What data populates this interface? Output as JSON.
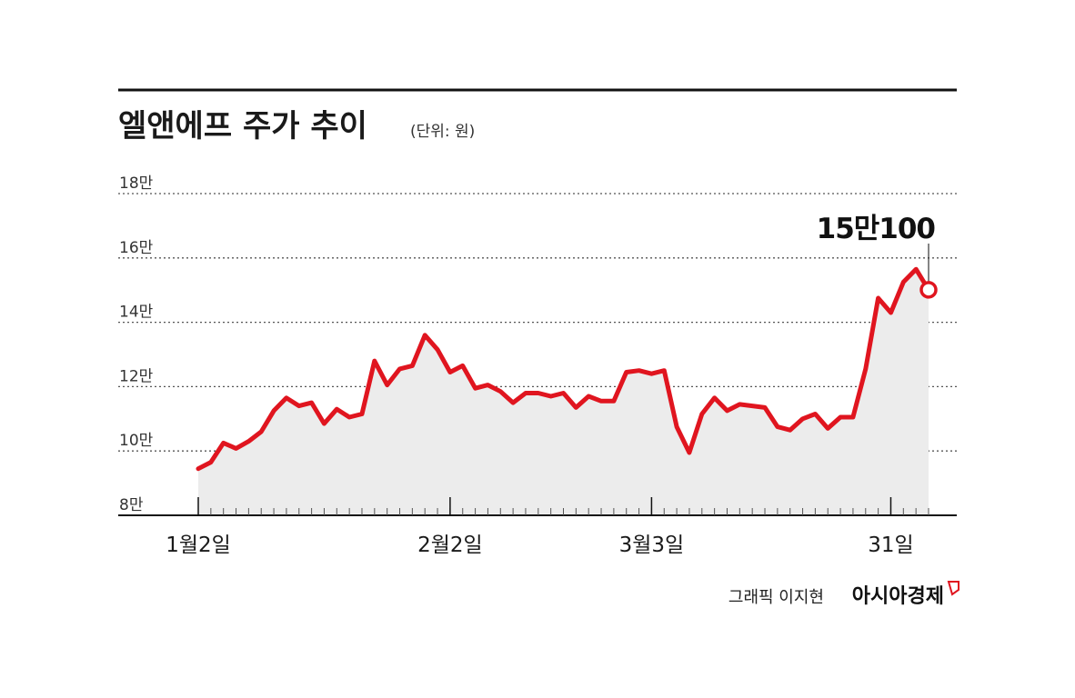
{
  "chart_data": {
    "type": "area",
    "title": "엘앤에프 주가 추이",
    "unit": "(단위: 원)",
    "ylim": [
      80000,
      180000
    ],
    "y_ticks": [
      {
        "value": 80000,
        "label": "8만"
      },
      {
        "value": 100000,
        "label": "10만"
      },
      {
        "value": 120000,
        "label": "12만"
      },
      {
        "value": 140000,
        "label": "14만"
      },
      {
        "value": 160000,
        "label": "16만"
      },
      {
        "value": 180000,
        "label": "18만"
      }
    ],
    "x_ticks": [
      {
        "index": 0,
        "label": "1월2일"
      },
      {
        "index": 20,
        "label": "2월2일"
      },
      {
        "index": 36,
        "label": "3월3일"
      },
      {
        "index": 55,
        "label": "31일"
      }
    ],
    "grid": true,
    "colors": {
      "line": "#e0151f",
      "fill": "#ececec",
      "grid": "#555555",
      "axis": "#111111"
    },
    "series": [
      {
        "values": [
          94500,
          96500,
          102500,
          100800,
          103000,
          106000,
          112500,
          116500,
          114000,
          115000,
          108500,
          113000,
          110500,
          111500,
          128000,
          120500,
          125500,
          126500,
          136000,
          131500,
          124500,
          126500,
          119500,
          120500,
          118500,
          115000,
          118000,
          118000,
          117000,
          118000,
          113500,
          117000,
          115500,
          115500,
          124500,
          125000,
          124000,
          125000,
          107500,
          99500,
          111500,
          116500,
          112500,
          114500,
          114000,
          113500,
          107500,
          106500,
          110000,
          111500,
          107000,
          110500,
          110500,
          125500,
          147500,
          143000,
          152500,
          156500,
          150100
        ]
      }
    ],
    "annotation": {
      "label": "15만100",
      "value": 150100,
      "index": 58
    }
  },
  "credit": {
    "graphic": "그래픽 이지현",
    "brand": "아시아경제"
  }
}
